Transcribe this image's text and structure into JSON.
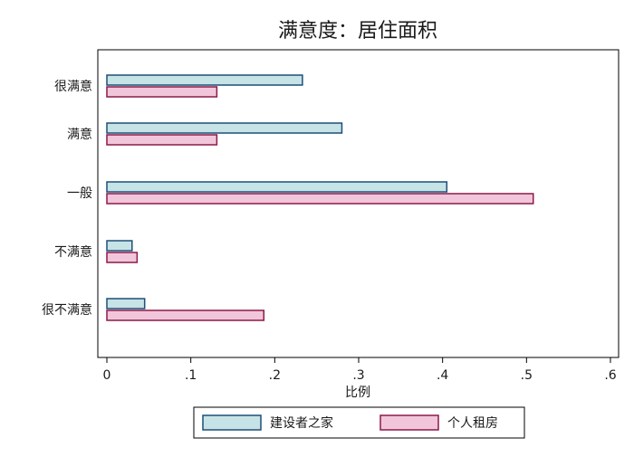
{
  "chart_data": {
    "type": "bar",
    "orientation": "horizontal",
    "title": "满意度：居住面积",
    "categories": [
      "很满意",
      "满意",
      "一般",
      "不满意",
      "很不满意"
    ],
    "series": [
      {
        "name": "建设者之家",
        "values": [
          0.233,
          0.28,
          0.405,
          0.03,
          0.045
        ],
        "fill": "#c6e3e6",
        "stroke": "#1f4e79"
      },
      {
        "name": "个人租房",
        "values": [
          0.131,
          0.131,
          0.508,
          0.036,
          0.187
        ],
        "fill": "#f2c6da",
        "stroke": "#8b1a4a"
      }
    ],
    "xlabel": "比例",
    "ylabel": "",
    "xlim": [
      0,
      0.6
    ],
    "xticks": [
      0,
      0.1,
      0.2,
      0.3,
      0.4,
      0.5,
      0.6
    ],
    "xtick_labels": [
      "0",
      ".1",
      ".2",
      ".3",
      ".4",
      ".5",
      ".6"
    ],
    "grid": false,
    "legend_position": "bottom"
  }
}
